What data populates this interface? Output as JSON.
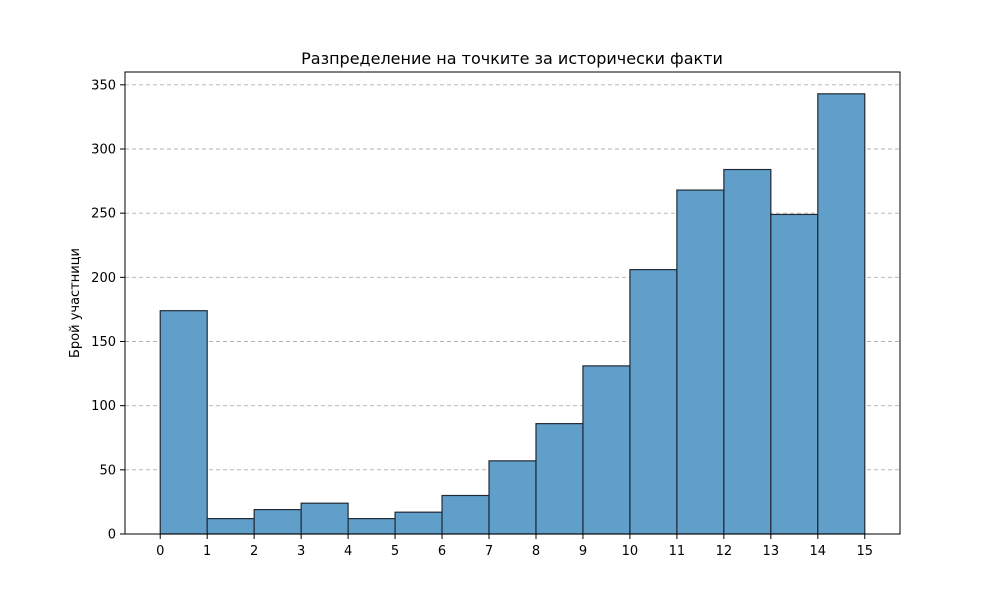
{
  "chart_data": {
    "type": "histogram",
    "title": "Разпределение на точките за исторически факти",
    "xlabel": "",
    "ylabel": "Брой участници",
    "bin_edges": [
      0,
      1,
      2,
      3,
      4,
      5,
      6,
      7,
      8,
      9,
      10,
      11,
      12,
      13,
      14,
      15
    ],
    "values": [
      174,
      12,
      19,
      24,
      12,
      17,
      30,
      57,
      86,
      131,
      206,
      268,
      284,
      249,
      343
    ],
    "xticks": [
      "0",
      "1",
      "2",
      "3",
      "4",
      "5",
      "6",
      "7",
      "8",
      "9",
      "10",
      "11",
      "12",
      "13",
      "14",
      "15"
    ],
    "yticks": [
      0,
      50,
      100,
      150,
      200,
      250,
      300,
      350
    ],
    "xlim": [
      -0.75,
      15.75
    ],
    "ylim": [
      0,
      360
    ],
    "grid": "y-dashed",
    "bar_color": "#619fcb",
    "edge_color": "#1f2a35"
  }
}
